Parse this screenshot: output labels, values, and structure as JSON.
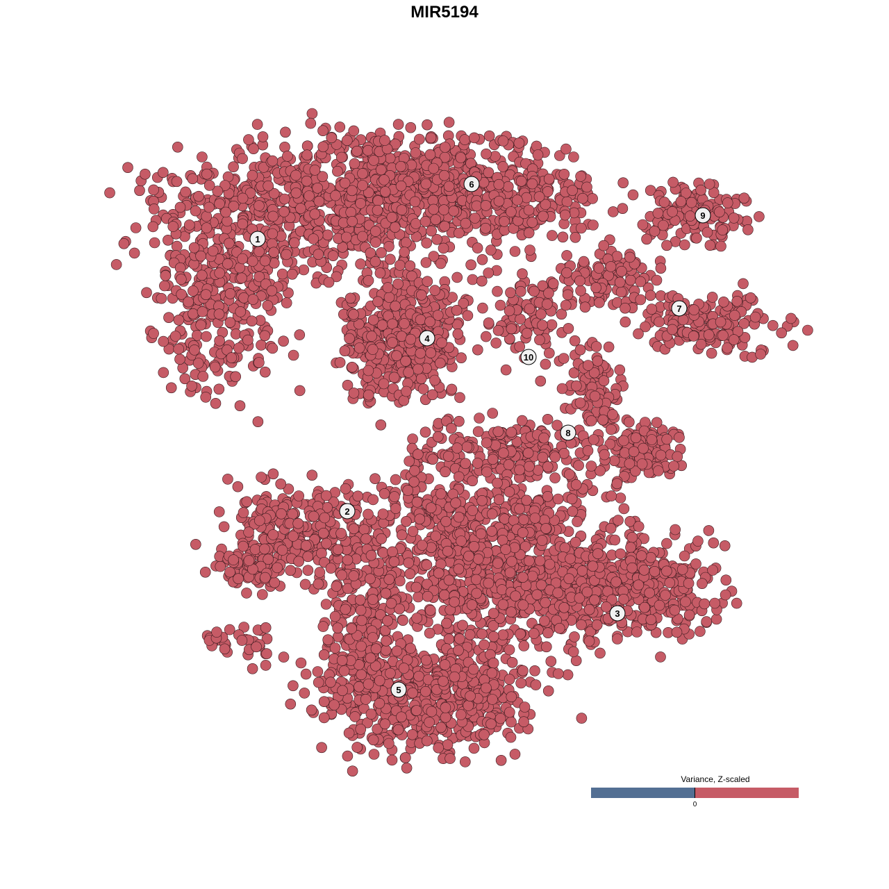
{
  "chart_data": {
    "type": "scatter",
    "title": "MIR5194",
    "xlabel": "",
    "ylabel": "",
    "grid": false,
    "point_color": "#c65b66",
    "point_edge_color": "#3a1a1e",
    "clusters": [
      {
        "label": "1",
        "center": [
          -26.9,
          29.6
        ]
      },
      {
        "label": "2",
        "center": [
          -14.0,
          -9.6
        ]
      },
      {
        "label": "3",
        "center": [
          24.9,
          -24.3
        ]
      },
      {
        "label": "4",
        "center": [
          -2.5,
          15.3
        ]
      },
      {
        "label": "5",
        "center": [
          -6.6,
          -35.3
        ]
      },
      {
        "label": "6",
        "center": [
          3.9,
          37.5
        ]
      },
      {
        "label": "7",
        "center": [
          33.8,
          19.6
        ]
      },
      {
        "label": "8",
        "center": [
          17.8,
          1.7
        ]
      },
      {
        "label": "9",
        "center": [
          37.2,
          33.0
        ]
      },
      {
        "label": "10",
        "center": [
          12.1,
          12.6
        ]
      }
    ],
    "legend": {
      "title": "Variance, Z-scaled",
      "placement": "bottom-right",
      "tick_label": "0",
      "low_color": "#536f93",
      "high_color": "#c65b66"
    }
  }
}
